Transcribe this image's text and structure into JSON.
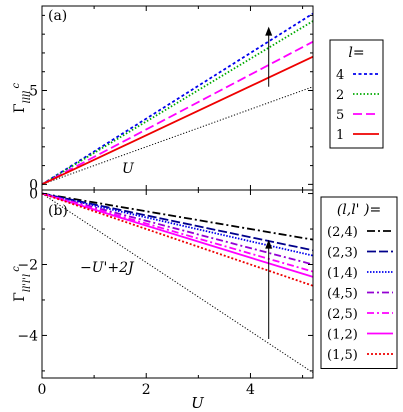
{
  "chart_data": [
    {
      "type": "line",
      "panel": "(a)",
      "ylabel_base": "Γ",
      "ylabel_sub": "llll",
      "ylabel_sup": "c",
      "xlim": [
        0,
        5.2
      ],
      "ylim": [
        -0.3,
        9.5
      ],
      "x_ticks": [
        0,
        2,
        4
      ],
      "y_ticks": [
        0,
        5
      ],
      "legend_title_var": "l",
      "legend_title_rest": "=",
      "legend_placement": "right",
      "series": [
        {
          "name": "4",
          "color": "#0000ee",
          "dash": "3,2.5",
          "x": [
            0,
            5.2
          ],
          "y": [
            0,
            9.1
          ]
        },
        {
          "name": "2",
          "color": "#00aa00",
          "dash": "1.5,2",
          "x": [
            0,
            5.2
          ],
          "y": [
            0,
            8.7
          ]
        },
        {
          "name": "5",
          "color": "#ff00ff",
          "dash": "9,4",
          "x": [
            0,
            5.2
          ],
          "y": [
            0,
            7.6
          ]
        },
        {
          "name": "1",
          "color": "#ee0000",
          "dash": "",
          "x": [
            0,
            5.2
          ],
          "y": [
            0,
            6.8
          ]
        }
      ],
      "reference": {
        "label": "U",
        "color": "#000000",
        "dash": "1.2,1.8",
        "x": [
          0,
          5.2
        ],
        "y": [
          0,
          5.2
        ]
      },
      "arrow": {
        "x": 4.35,
        "y_from": 5.2,
        "y_to": 8.4
      }
    },
    {
      "type": "line",
      "panel": "(b)",
      "xlabel": "U",
      "ylabel_base": "Γ",
      "ylabel_sub": "ll'l'l",
      "ylabel_sup": "c",
      "xlim": [
        0,
        5.2
      ],
      "ylim": [
        -5.2,
        0.1
      ],
      "x_ticks": [
        0,
        2,
        4
      ],
      "y_ticks": [
        0,
        -2,
        -4
      ],
      "legend_title_var": "(l,l' )",
      "legend_title_rest": "=",
      "legend_placement": "right",
      "series": [
        {
          "name": "(2,4)",
          "color": "#000000",
          "dash": "8,3,2,3",
          "x": [
            0,
            5.2
          ],
          "y": [
            0,
            -1.3
          ]
        },
        {
          "name": "(2,3)",
          "color": "#00008b",
          "dash": "9,3",
          "x": [
            0,
            5.2
          ],
          "y": [
            0,
            -1.6
          ]
        },
        {
          "name": "(1,4)",
          "color": "#0000ee",
          "dash": "1.5,1.5",
          "x": [
            0,
            5.2
          ],
          "y": [
            0,
            -1.75
          ]
        },
        {
          "name": "(4,5)",
          "color": "#9400d3",
          "dash": "7,3,2,3",
          "x": [
            0,
            5.2
          ],
          "y": [
            0,
            -2.0
          ]
        },
        {
          "name": "(2,5)",
          "color": "#ff00ff",
          "dash": "7,3,2,3",
          "x": [
            0,
            5.2
          ],
          "y": [
            0,
            -2.2
          ]
        },
        {
          "name": "(1,2)",
          "color": "#ff00ff",
          "dash": "",
          "x": [
            0,
            5.2
          ],
          "y": [
            0,
            -2.35
          ]
        },
        {
          "name": "(1,5)",
          "color": "#ee0000",
          "dash": "2,2",
          "x": [
            0,
            5.2
          ],
          "y": [
            0,
            -2.6
          ]
        }
      ],
      "reference": {
        "label": "−U'+2J",
        "color": "#000000",
        "dash": "1.2,1.8",
        "x": [
          0,
          5.2
        ],
        "y": [
          0,
          -5.05
        ]
      },
      "arrow": {
        "x": 4.35,
        "y_from": -4.1,
        "y_to": -1.3
      }
    }
  ]
}
